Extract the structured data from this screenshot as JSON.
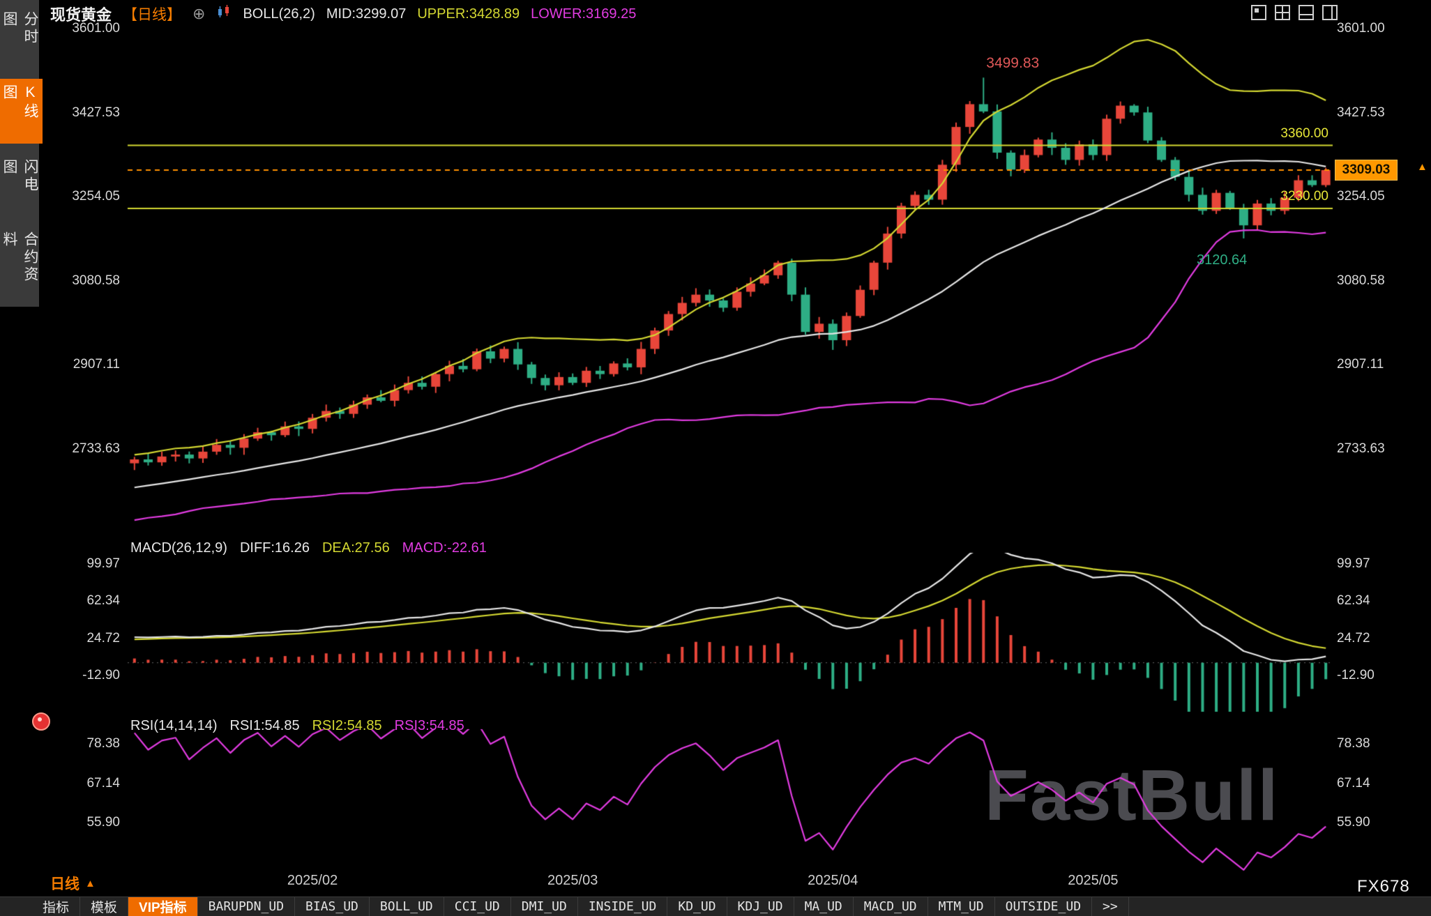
{
  "app": {
    "watermark": "FastBull",
    "brand": "FX678"
  },
  "sidebar": {
    "items": [
      {
        "name": "time-sharing-chart",
        "label": "分时图",
        "active": false
      },
      {
        "name": "kline-chart",
        "label": "K线图",
        "active": true
      },
      {
        "name": "lightning-chart",
        "label": "闪电图",
        "active": false
      },
      {
        "name": "contract-info",
        "label": "合约资料",
        "active": false
      }
    ]
  },
  "header": {
    "symbol": "现货黄金",
    "period_tag": "【日线】",
    "add_icon": "⊕",
    "indicator_label": "BOLL(26,2)",
    "mid_label": "MID:3299.07",
    "upper_label": "UPPER:3428.89",
    "lower_label": "LOWER:3169.25"
  },
  "annotations": {
    "peak": "3499.83",
    "level_upper": "3360.00",
    "level_lower": "3230.00",
    "current_price": "3309.03",
    "ma_value": "3120.64",
    "up_arrow": "▲"
  },
  "main_axis": {
    "labels": [
      "3601.00",
      "3427.53",
      "3254.05",
      "3080.58",
      "2907.11",
      "2733.63"
    ],
    "values": [
      3601.0,
      3427.53,
      3254.05,
      3080.58,
      2907.11,
      2733.63
    ]
  },
  "macd": {
    "header_label": "MACD(26,12,9)",
    "diff_label": "DIFF:16.26",
    "dea_label": "DEA:27.56",
    "macd_label": "MACD:-22.61",
    "axis_labels": [
      "99.97",
      "62.34",
      "24.72",
      "-12.90"
    ],
    "axis_values": [
      99.97,
      62.34,
      24.72,
      -12.9
    ]
  },
  "rsi": {
    "header_label": "RSI(14,14,14)",
    "rsi1_label": "RSI1:54.85",
    "rsi2_label": "RSI2:54.85",
    "rsi3_label": "RSI3:54.85",
    "axis_labels": [
      "78.38",
      "67.14",
      "55.90"
    ],
    "axis_values": [
      78.38,
      67.14,
      55.9
    ]
  },
  "x_axis": {
    "ticks": [
      {
        "label": "2025/02",
        "index": 13
      },
      {
        "label": "2025/03",
        "index": 32
      },
      {
        "label": "2025/04",
        "index": 51
      },
      {
        "label": "2025/05",
        "index": 70
      }
    ]
  },
  "footer": {
    "period_label": "日线",
    "period_arrow": "▲",
    "tabs": [
      {
        "name": "indicators",
        "label": "指标",
        "active": false,
        "mono": false
      },
      {
        "name": "templates",
        "label": "模板",
        "active": false,
        "mono": false
      },
      {
        "name": "vip-indicators",
        "label": "VIP指标",
        "active": true,
        "mono": false
      },
      {
        "name": "barupdn-ud",
        "label": "BARUPDN_UD",
        "active": false,
        "mono": true
      },
      {
        "name": "bias-ud",
        "label": "BIAS_UD",
        "active": false,
        "mono": true
      },
      {
        "name": "boll-ud",
        "label": "BOLL_UD",
        "active": false,
        "mono": true
      },
      {
        "name": "cci-ud",
        "label": "CCI_UD",
        "active": false,
        "mono": true
      },
      {
        "name": "dmi-ud",
        "label": "DMI_UD",
        "active": false,
        "mono": true
      },
      {
        "name": "inside-ud",
        "label": "INSIDE_UD",
        "active": false,
        "mono": true
      },
      {
        "name": "kd-ud",
        "label": "KD_UD",
        "active": false,
        "mono": true
      },
      {
        "name": "kdj-ud",
        "label": "KDJ_UD",
        "active": false,
        "mono": true
      },
      {
        "name": "ma-ud",
        "label": "MA_UD",
        "active": false,
        "mono": true
      },
      {
        "name": "macd-ud",
        "label": "MACD_UD",
        "active": false,
        "mono": true
      },
      {
        "name": "mtm-ud",
        "label": "MTM_UD",
        "active": false,
        "mono": true
      },
      {
        "name": "outside-ud",
        "label": "OUTSIDE_UD",
        "active": false,
        "mono": true
      },
      {
        "name": "more",
        "label": ">>",
        "active": false,
        "mono": true
      }
    ]
  },
  "colors": {
    "up": "#e8463a",
    "down": "#2eae85",
    "upper_band": "#d4d832",
    "mid_band": "#e6e6e6",
    "lower_band": "#e23ce2",
    "level_line": "#d4d832",
    "current_line": "#ff9100",
    "accent": "#ef6c00",
    "peak_text": "#e05858",
    "teal_text": "#2fae85",
    "price_box_bg": "#ff9800"
  },
  "chart_data": {
    "type": "candlestick",
    "title": "现货黄金 日线",
    "y_axis_ticks": [
      3601.0,
      3427.53,
      3254.05,
      3080.58,
      2907.11,
      2733.63
    ],
    "x_tick_labels": [
      "2025/02",
      "2025/03",
      "2025/04",
      "2025/05"
    ],
    "x_tick_indices": [
      13,
      32,
      51,
      70
    ],
    "closes": [
      2712,
      2706,
      2718,
      2722,
      2714,
      2728,
      2742,
      2736,
      2755,
      2768,
      2762,
      2780,
      2775,
      2798,
      2812,
      2806,
      2825,
      2840,
      2833,
      2855,
      2870,
      2862,
      2888,
      2905,
      2898,
      2935,
      2920,
      2940,
      2908,
      2880,
      2865,
      2882,
      2870,
      2895,
      2888,
      2910,
      2902,
      2940,
      2978,
      3012,
      3035,
      3052,
      3040,
      3025,
      3058,
      3075,
      3092,
      3118,
      3052,
      2975,
      2992,
      2958,
      3008,
      3062,
      3118,
      3178,
      3235,
      3258,
      3248,
      3320,
      3398,
      3445,
      3430,
      3345,
      3310,
      3340,
      3372,
      3355,
      3330,
      3362,
      3340,
      3415,
      3442,
      3428,
      3370,
      3330,
      3295,
      3258,
      3225,
      3262,
      3230,
      3195,
      3240,
      3225,
      3252,
      3288,
      3278,
      3309.03
    ],
    "peak_high": 3499.83,
    "last_close": 3309.03,
    "current_price": 3309.03,
    "horizontal_levels": [
      3360.0,
      3230.0
    ],
    "boll": {
      "period": 26,
      "mult": 2,
      "mid": 3299.07,
      "upper": 3428.89,
      "lower": 3169.25
    },
    "macd": {
      "params": [
        26,
        12,
        9
      ],
      "diff": 16.26,
      "dea": 27.56,
      "macd": -22.61,
      "axis_ticks": [
        99.97,
        62.34,
        24.72,
        -12.9
      ]
    },
    "rsi": {
      "params": [
        14,
        14,
        14
      ],
      "rsi1": 54.85,
      "rsi2": 54.85,
      "rsi3": 54.85,
      "axis_ticks": [
        78.38,
        67.14,
        55.9
      ]
    }
  }
}
